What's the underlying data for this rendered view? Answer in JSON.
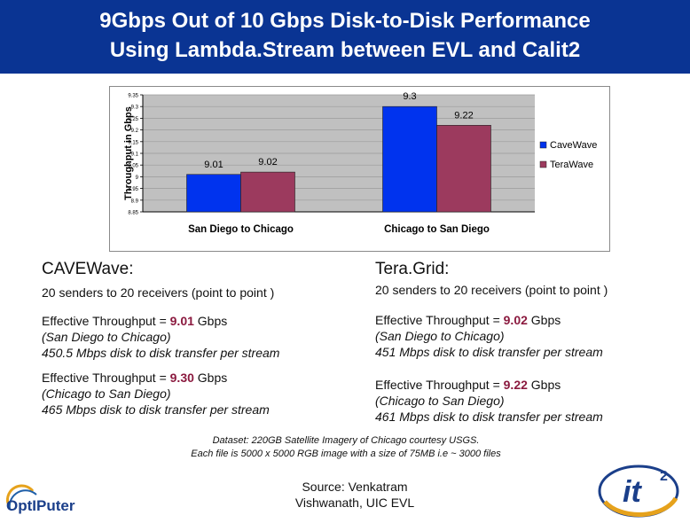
{
  "title": {
    "line1": "9Gbps Out of 10 Gbps Disk-to-Disk Performance",
    "line2": "Using Lambda.Stream between EVL and Calit2"
  },
  "chart_data": {
    "type": "bar",
    "categories": [
      "San Diego to Chicago",
      "Chicago to San Diego"
    ],
    "series": [
      {
        "name": "CaveWave",
        "values": [
          9.01,
          9.3
        ],
        "color": "#0033ee"
      },
      {
        "name": "TeraWave",
        "values": [
          9.02,
          9.22
        ],
        "color": "#9c3a5e"
      }
    ],
    "data_labels": [
      [
        "9.01",
        "9.02"
      ],
      [
        "9.3",
        "9.22"
      ]
    ],
    "ylabel": "Throughput in Gbps",
    "xlabel": "",
    "ylim": [
      8.85,
      9.35
    ],
    "yticks": [
      "8.85",
      "8.9",
      "8.95",
      "9",
      "9.05",
      "9.1",
      "9.15",
      "9.2",
      "9.25",
      "9.3",
      "9.35"
    ],
    "grid": true,
    "legend": "right",
    "plot_background": "#c0c0c0"
  },
  "cavewave": {
    "heading": "CAVEWave:",
    "senders": "20 senders to 20 receivers (point to point )",
    "block1": {
      "prefix": "Effective Throughput = ",
      "value": "9.01",
      "unit": " Gbps",
      "route": "(San Diego to Chicago)",
      "transfer": " 450.5 Mbps disk to disk transfer per stream"
    },
    "block2": {
      "prefix": "Effective Throughput = ",
      "value": "9.30",
      "unit": " Gbps",
      "route": "(Chicago to San Diego)",
      "transfer": " 465 Mbps disk to disk transfer per stream"
    }
  },
  "teragrid": {
    "heading": "Tera.Grid:",
    "senders": "20 senders to 20 receivers (point to point )",
    "block1": {
      "prefix": "Effective Throughput = ",
      "value": "9.02",
      "unit": " Gbps",
      "route": "(San Diego to Chicago)",
      "transfer": " 451 Mbps disk to disk transfer per stream"
    },
    "block2": {
      "prefix": "Effective Throughput = ",
      "value": "9.22",
      "unit": " Gbps",
      "route": "(Chicago to San Diego)",
      "transfer": " 461 Mbps disk to disk transfer per stream"
    }
  },
  "dataset": {
    "line1": "Dataset: 220GB Satellite Imagery of Chicago courtesy USGS.",
    "line2": "Each file is 5000 x 5000 RGB image with a size of 75MB i.e ~ 3000 files"
  },
  "source": {
    "line1": "Source: Venkatram",
    "line2": "Vishwanath, UIC EVL"
  },
  "logos": {
    "optiputer": {
      "icon": "optiputer-logo",
      "text": "OptIPuter"
    },
    "calit2": {
      "icon": "calit2-logo",
      "text": "it",
      "sup": "2"
    }
  },
  "colors": {
    "title_bg": "#0a3493",
    "highlight": "#8b1a3f"
  }
}
